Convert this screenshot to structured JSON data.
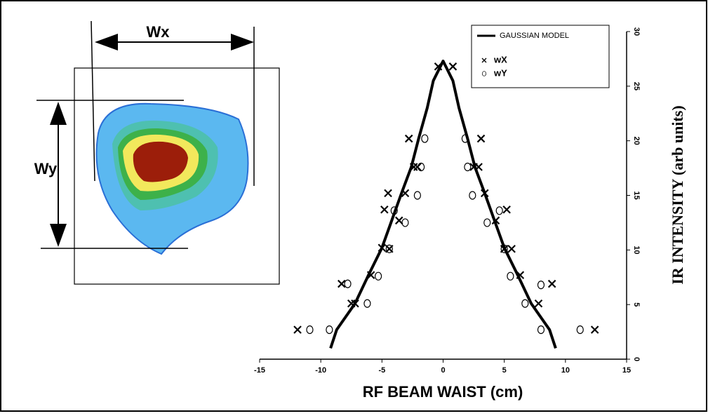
{
  "chart_data": {
    "type": "scatter",
    "xlabel": "RF BEAM WAIST (cm)",
    "ylabel": "IR INTENSITY (arb units)",
    "annotations": [
      "Wx",
      "Wy"
    ],
    "xlim": [
      -15,
      15
    ],
    "xticks": [
      -15,
      -10,
      -5,
      0,
      5,
      10,
      15
    ],
    "ylim": [
      0,
      30
    ],
    "yticks": [
      0,
      5,
      10,
      15,
      20,
      25,
      30
    ],
    "legend": "upper right",
    "series": [
      {
        "name": "GAUSSIAN MODEL",
        "color": "#000000",
        "marker": "line",
        "x": [
          -9.2,
          -8.7,
          -7.2,
          -6.1,
          -5.0,
          -4.2,
          -3.4,
          -2.6,
          -2.0,
          -1.3,
          -0.8,
          0,
          0.8,
          1.3,
          2.0,
          2.6,
          3.4,
          4.2,
          5.0,
          6.1,
          7.2,
          8.7,
          9.2
        ],
        "values": [
          1.0,
          2.7,
          5.1,
          7.7,
          10.2,
          12.7,
          15.2,
          17.6,
          20.2,
          23.0,
          25.5,
          27.3,
          25.5,
          23.0,
          20.2,
          17.6,
          15.2,
          12.7,
          10.2,
          7.7,
          5.1,
          2.7,
          1.0
        ]
      },
      {
        "name": "wX",
        "color": "#000000",
        "marker": "x",
        "x": [
          -11.9,
          -8.3,
          -7.5,
          -7.2,
          -5.9,
          -5.0,
          -4.4,
          -4.8,
          -3.6,
          -4.5,
          -3.1,
          -2.4,
          -2.1,
          -2.8,
          -0.4,
          0.8,
          3.1,
          2.9,
          2.5,
          3.4,
          4.3,
          5.2,
          5.0,
          5.6,
          6.3,
          7.8,
          8.9,
          12.4
        ],
        "values": [
          2.7,
          6.9,
          5.1,
          5.1,
          7.7,
          10.2,
          10.1,
          13.7,
          12.7,
          15.2,
          15.2,
          17.6,
          17.6,
          20.2,
          26.8,
          26.8,
          20.2,
          17.6,
          17.6,
          15.2,
          12.7,
          13.7,
          10.1,
          10.1,
          7.7,
          5.1,
          6.9,
          2.7
        ]
      },
      {
        "name": "wY",
        "color": "#000000",
        "marker": "o",
        "x": [
          -10.9,
          -9.3,
          -7.8,
          -6.2,
          -5.3,
          -4.4,
          -4.0,
          -3.1,
          -2.1,
          -1.8,
          -1.5,
          1.8,
          2.0,
          2.4,
          3.6,
          4.6,
          5.0,
          5.5,
          6.7,
          8.0,
          8.0,
          11.2
        ],
        "values": [
          2.7,
          2.7,
          6.9,
          5.1,
          7.6,
          10.1,
          13.6,
          12.5,
          15.0,
          17.6,
          20.2,
          20.2,
          17.6,
          15.0,
          12.5,
          13.6,
          10.1,
          7.6,
          5.1,
          6.8,
          2.7,
          2.7
        ]
      }
    ]
  }
}
